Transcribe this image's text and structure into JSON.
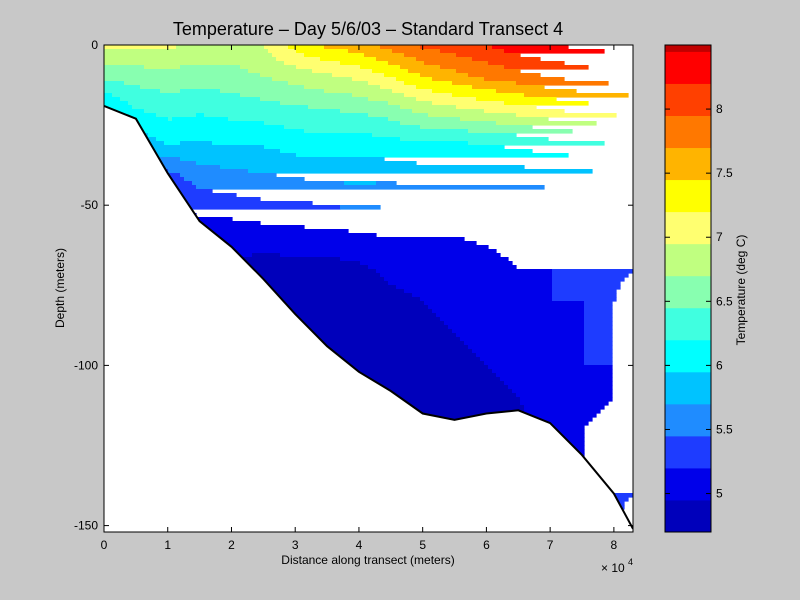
{
  "chart_data": {
    "type": "heatmap",
    "subtype": "filled-contour",
    "title": "Temperature – Day 5/6/03 – Standard Transect 4",
    "xlabel": "Distance along transect (meters)",
    "ylabel": "Depth (meters)",
    "x_multiplier_label": "× 10",
    "x_multiplier_exponent": "4",
    "x_ticks": [
      0,
      1,
      2,
      3,
      4,
      5,
      6,
      7,
      8
    ],
    "x_scale": 10000,
    "xlim": [
      0,
      83000
    ],
    "y_ticks": [
      0,
      -50,
      -100,
      -150
    ],
    "ylim": [
      -152,
      0
    ],
    "colorbar": {
      "label": "Temperature (deg C)",
      "range": [
        4.7,
        8.5
      ],
      "ticks": [
        5,
        5.5,
        6,
        6.5,
        7,
        7.5,
        8
      ],
      "levels": [
        {
          "from": 4.7,
          "to": 4.95,
          "color": "#0000bb"
        },
        {
          "from": 4.95,
          "to": 5.2,
          "color": "#0000ea"
        },
        {
          "from": 5.2,
          "to": 5.45,
          "color": "#1e3cff"
        },
        {
          "from": 5.45,
          "to": 5.7,
          "color": "#1f8cff"
        },
        {
          "from": 5.7,
          "to": 5.95,
          "color": "#00c3ff"
        },
        {
          "from": 5.95,
          "to": 6.2,
          "color": "#00ffff"
        },
        {
          "from": 6.2,
          "to": 6.45,
          "color": "#40ffe0"
        },
        {
          "from": 6.45,
          "to": 6.7,
          "color": "#88ffb0"
        },
        {
          "from": 6.7,
          "to": 6.95,
          "color": "#c0ff80"
        },
        {
          "from": 6.95,
          "to": 7.2,
          "color": "#ffff70"
        },
        {
          "from": 7.2,
          "to": 7.45,
          "color": "#ffff00"
        },
        {
          "from": 7.45,
          "to": 7.7,
          "color": "#ffb400"
        },
        {
          "from": 7.7,
          "to": 7.95,
          "color": "#ff7800"
        },
        {
          "from": 7.95,
          "to": 8.2,
          "color": "#ff4000"
        },
        {
          "from": 8.2,
          "to": 8.45,
          "color": "#ff0000"
        },
        {
          "from": 8.45,
          "to": 8.7,
          "color": "#c00000"
        }
      ]
    },
    "bottom_profile": {
      "distance_m": [
        0,
        5000,
        10000,
        15000,
        20000,
        25000,
        30000,
        35000,
        40000,
        45000,
        50000,
        55000,
        60000,
        65000,
        70000,
        75000,
        80000,
        83000
      ],
      "depth_m": [
        -19,
        -23,
        -40,
        -55,
        -63,
        -73,
        -84,
        -94,
        -102,
        -108,
        -115,
        -117,
        -115,
        -114,
        -118,
        -128,
        -140,
        -151
      ]
    },
    "temperature_profiles": {
      "depth_m": [
        0,
        -10,
        -20,
        -30,
        -40,
        -50,
        -60,
        -70,
        -80,
        -90,
        -100,
        -110,
        -120,
        -130,
        -140,
        -152
      ],
      "stations": [
        {
          "distance_m": 0,
          "temps": [
            7.0,
            6.5,
            5.9
          ]
        },
        {
          "distance_m": 5000,
          "temps": [
            7.0,
            6.55,
            6.2,
            5.8,
            5.45,
            5.1
          ]
        },
        {
          "distance_m": 10000,
          "temps": [
            7.0,
            6.6,
            6.3,
            6.0,
            5.4,
            5.1,
            5.0
          ]
        },
        {
          "distance_m": 15000,
          "temps": [
            6.9,
            6.55,
            6.25,
            5.95,
            5.6,
            5.3,
            5.0
          ]
        },
        {
          "distance_m": 20000,
          "temps": [
            6.85,
            6.6,
            6.3,
            6.0,
            5.65,
            5.35,
            5.0,
            4.95
          ]
        },
        {
          "distance_m": 25000,
          "temps": [
            6.95,
            6.7,
            6.35,
            6.0,
            5.7,
            5.4,
            5.05,
            4.85
          ]
        },
        {
          "distance_m": 30000,
          "temps": [
            7.3,
            6.8,
            6.4,
            6.1,
            5.75,
            5.4,
            5.1,
            4.85,
            4.8
          ]
        },
        {
          "distance_m": 35000,
          "temps": [
            7.5,
            6.9,
            6.45,
            6.1,
            5.8,
            5.45,
            5.1,
            4.85,
            4.8,
            4.8
          ]
        },
        {
          "distance_m": 40000,
          "temps": [
            7.6,
            7.0,
            6.5,
            6.1,
            5.8,
            5.5,
            5.15,
            4.9,
            4.85,
            4.8,
            4.8
          ]
        },
        {
          "distance_m": 45000,
          "temps": [
            7.8,
            7.2,
            6.6,
            6.15,
            5.8,
            5.45,
            5.2,
            5.0,
            4.9,
            4.85,
            4.82
          ]
        },
        {
          "distance_m": 50000,
          "temps": [
            8.0,
            7.45,
            6.8,
            6.2,
            5.85,
            5.45,
            5.2,
            5.05,
            4.95,
            4.9,
            4.85,
            4.85
          ]
        },
        {
          "distance_m": 55000,
          "temps": [
            8.1,
            7.6,
            6.9,
            6.2,
            5.85,
            5.45,
            5.2,
            5.1,
            5.0,
            4.95,
            4.9,
            4.85,
            4.85
          ]
        },
        {
          "distance_m": 60000,
          "temps": [
            8.2,
            7.75,
            7.0,
            6.25,
            5.85,
            5.45,
            5.22,
            5.15,
            5.1,
            5.0,
            4.95,
            4.9,
            4.9
          ]
        },
        {
          "distance_m": 65000,
          "temps": [
            8.35,
            7.85,
            7.1,
            6.3,
            5.85,
            5.45,
            5.25,
            5.2,
            5.15,
            5.05,
            5.0,
            4.95,
            4.9
          ]
        },
        {
          "distance_m": 70000,
          "temps": [
            8.45,
            7.95,
            7.2,
            6.4,
            5.9,
            5.45,
            5.25,
            5.2,
            5.2,
            5.15,
            5.1,
            5.05,
            5.0
          ]
        },
        {
          "distance_m": 75000,
          "temps": [
            8.5,
            8.05,
            7.3,
            6.45,
            5.9,
            5.45,
            5.25,
            5.22,
            5.2,
            5.2,
            5.2,
            5.15,
            5.2,
            5.2
          ]
        },
        {
          "distance_m": 80000,
          "temps": [
            8.55,
            8.1,
            7.35,
            6.5,
            5.95,
            5.45,
            5.25,
            5.22,
            5.2,
            5.2,
            5.2,
            5.2,
            5.25,
            5.3,
            5.4
          ]
        },
        {
          "distance_m": 83000,
          "temps": [
            8.6,
            8.1,
            7.4,
            6.5,
            5.95,
            5.45,
            5.25,
            5.2,
            5.15,
            5.1,
            5.2,
            5.2,
            5.25,
            5.3,
            5.45,
            5.6
          ]
        }
      ]
    }
  }
}
